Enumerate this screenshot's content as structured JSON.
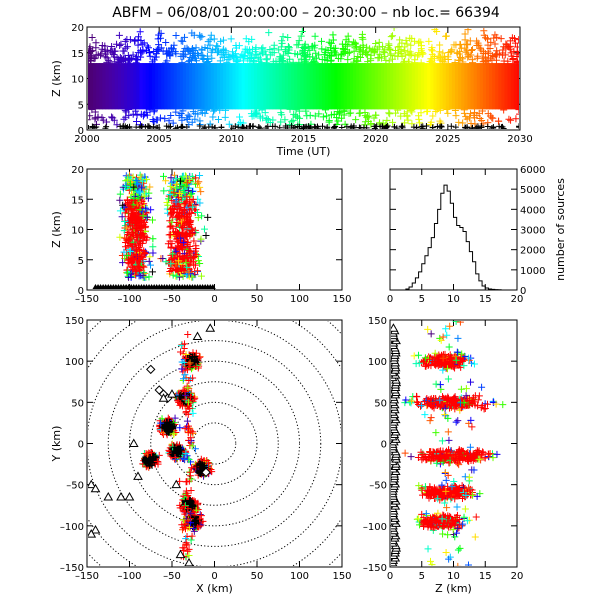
{
  "title": "ABFM – 06/08/01 20:00:00 – 20:30:00 – nb loc.=  66394",
  "chart_data": [
    {
      "id": "time_height",
      "type": "scatter",
      "xlabel": "Time (UT)",
      "ylabel": "Z (km)",
      "xlim": [
        2000,
        2030
      ],
      "ylim": [
        0,
        20
      ],
      "xticks": [
        "2000",
        "2005",
        "2010",
        "2015",
        "2020",
        "2025",
        "2030"
      ],
      "yticks": [
        "0",
        "5",
        "10",
        "15",
        "20"
      ],
      "color_by": "time",
      "density_core_km": [
        4,
        13
      ],
      "density_sparse_km": [
        13,
        20
      ]
    },
    {
      "id": "xz",
      "type": "scatter",
      "xlabel": "",
      "ylabel": "Z (km)",
      "xlim": [
        -150,
        150
      ],
      "ylim": [
        0,
        20
      ],
      "xticks": [
        "–150",
        "–100",
        "–50",
        "0",
        "50",
        "100",
        "150"
      ],
      "yticks": [
        "0",
        "5",
        "10",
        "15",
        "20"
      ],
      "clusters": [
        {
          "x_range": [
            -110,
            -75
          ],
          "z_range": [
            2,
            19
          ]
        },
        {
          "x_range": [
            -60,
            -15
          ],
          "z_range": [
            2,
            19
          ]
        }
      ]
    },
    {
      "id": "histogram",
      "type": "bar",
      "xlabel": "",
      "ylabel": "number of sources",
      "xlim": [
        0,
        20
      ],
      "ylim": [
        0,
        6000
      ],
      "xticks": [
        "0",
        "5",
        "10",
        "15",
        "20"
      ],
      "yticks": [
        "0",
        "1000",
        "2000",
        "3000",
        "4000",
        "5000",
        "6000"
      ],
      "bin_width": 0.5,
      "bin_starts": [
        0,
        0.5,
        1,
        1.5,
        2,
        2.5,
        3,
        3.5,
        4,
        4.5,
        5,
        5.5,
        6,
        6.5,
        7,
        7.5,
        8,
        8.5,
        9,
        9.5,
        10,
        10.5,
        11,
        11.5,
        12,
        12.5,
        13,
        13.5,
        14,
        14.5,
        15,
        15.5,
        16,
        16.5,
        17,
        17.5,
        18,
        18.5,
        19,
        19.5
      ],
      "values": [
        0,
        0,
        0,
        0,
        0,
        50,
        150,
        350,
        600,
        900,
        1300,
        1700,
        2100,
        2600,
        3300,
        4000,
        4800,
        5200,
        4900,
        4300,
        3600,
        3200,
        3100,
        2900,
        2400,
        1900,
        1400,
        800,
        450,
        200,
        100,
        50,
        30,
        20,
        10,
        0,
        0,
        0,
        0,
        0
      ]
    },
    {
      "id": "plan_view",
      "type": "scatter",
      "xlabel": "X (km)",
      "ylabel": "Y (km)",
      "xlim": [
        -150,
        150
      ],
      "ylim": [
        -150,
        150
      ],
      "xticks": [
        "–150",
        "–100",
        "–50",
        "0",
        "50",
        "100",
        "150"
      ],
      "yticks": [
        "–150",
        "–100",
        "–50",
        "0",
        "50",
        "100",
        "150"
      ],
      "range_rings_km": [
        25,
        50,
        75,
        100,
        125,
        150,
        175,
        200
      ],
      "clusters": [
        {
          "x": -27,
          "y": 100
        },
        {
          "x": -35,
          "y": 55
        },
        {
          "x": -55,
          "y": 20
        },
        {
          "x": -75,
          "y": -20
        },
        {
          "x": -45,
          "y": -10
        },
        {
          "x": -30,
          "y": -75
        },
        {
          "x": -25,
          "y": -95
        },
        {
          "x": -15,
          "y": -30
        }
      ],
      "stations_diamond": [
        [
          -75,
          90
        ],
        [
          -65,
          65
        ],
        [
          -60,
          60
        ],
        [
          -55,
          55
        ],
        [
          -10,
          -35
        ]
      ],
      "stations_triangle": [
        [
          -145,
          -50
        ],
        [
          -140,
          -55
        ],
        [
          -125,
          -65
        ],
        [
          -110,
          -65
        ],
        [
          -100,
          -65
        ],
        [
          -140,
          -105
        ],
        [
          -145,
          -110
        ],
        [
          -45,
          -50
        ],
        [
          -40,
          -135
        ],
        [
          -30,
          -145
        ],
        [
          -90,
          -40
        ],
        [
          -95,
          0
        ],
        [
          -20,
          130
        ],
        [
          -5,
          140
        ],
        [
          -50,
          60
        ],
        [
          -60,
          55
        ]
      ]
    },
    {
      "id": "yz",
      "type": "scatter",
      "xlabel": "Z (km)",
      "ylabel": "",
      "xlim": [
        0,
        20
      ],
      "ylim": [
        -150,
        150
      ],
      "xticks": [
        "0",
        "5",
        "10",
        "15",
        "20"
      ],
      "yticks": [
        "–150",
        "–100",
        "–50",
        "0",
        "50",
        "100",
        "150"
      ],
      "clusters": [
        {
          "y": 100,
          "z_range": [
            4,
            13
          ]
        },
        {
          "y": 50,
          "z_range": [
            2,
            17
          ]
        },
        {
          "y": -15,
          "z_range": [
            3,
            17
          ]
        },
        {
          "y": -60,
          "z_range": [
            4,
            14
          ]
        },
        {
          "y": -95,
          "z_range": [
            4,
            12
          ]
        }
      ]
    }
  ]
}
